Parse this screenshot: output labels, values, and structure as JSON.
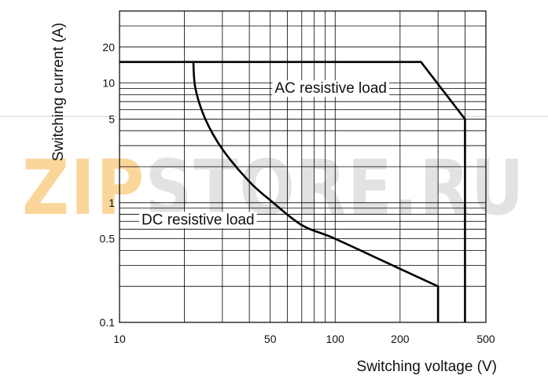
{
  "chart_data": {
    "type": "line",
    "scale": {
      "x": "log",
      "y": "log"
    },
    "xlim": [
      10,
      500
    ],
    "ylim": [
      0.1,
      40
    ],
    "xlabel": "Switching voltage (V)",
    "ylabel": "Switching current (A)",
    "x_ticks": [
      10,
      50,
      100,
      200,
      500
    ],
    "x_tick_labels": [
      "10",
      "50",
      "100",
      "200",
      "500"
    ],
    "y_ticks": [
      20,
      10,
      5,
      1,
      0.5,
      0.1
    ],
    "y_tick_labels": [
      "20",
      "10",
      "5",
      "1",
      "0.5",
      "0.1"
    ],
    "grid": true,
    "series": [
      {
        "name": "AC resistive load",
        "points": [
          [
            10,
            15
          ],
          [
            250,
            15
          ],
          [
            400,
            5
          ],
          [
            400,
            0.1
          ]
        ]
      },
      {
        "name": "DC resistive load",
        "points": [
          [
            22,
            15
          ],
          [
            22.5,
            9
          ],
          [
            25,
            5
          ],
          [
            30,
            2.8
          ],
          [
            40,
            1.5
          ],
          [
            50,
            1.05
          ],
          [
            70,
            0.65
          ],
          [
            100,
            0.5
          ],
          [
            200,
            0.28
          ],
          [
            300,
            0.2
          ],
          [
            300,
            0.1
          ]
        ]
      }
    ],
    "annotations": [
      {
        "text": "AC resistive load",
        "series": "AC resistive load"
      },
      {
        "text": "DC resistive load",
        "series": "DC resistive load"
      }
    ],
    "line_color": "#000000",
    "grid_color": "#000000"
  },
  "watermark": {
    "text": "ZIPSTORE.RU",
    "part1": "ZIP",
    "part2": "STORE.RU",
    "color1": "#f6a623",
    "color2": "#c0c0c0"
  }
}
